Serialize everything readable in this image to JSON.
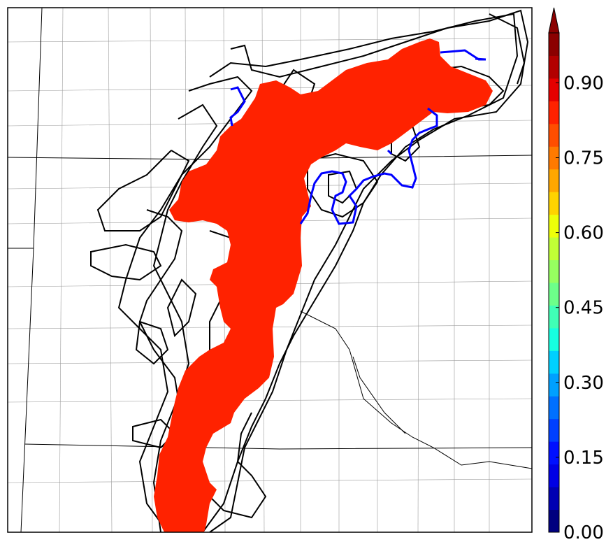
{
  "colorbar": {
    "tick_labels": [
      "0.00",
      "0.15",
      "0.30",
      "0.45",
      "0.60",
      "0.75",
      "0.90"
    ],
    "tick_values": [
      0.0,
      0.15,
      0.3,
      0.45,
      0.6,
      0.75,
      0.9
    ],
    "range": [
      0.0,
      1.0
    ],
    "extend": "max",
    "colors": [
      "#00007f",
      "#0000b2",
      "#0000e5",
      "#0010ff",
      "#0040ff",
      "#0070ff",
      "#00a0ff",
      "#00d0ff",
      "#16ffe0",
      "#40ffb6",
      "#6dff8a",
      "#97ff60",
      "#c1ff36",
      "#eeff09",
      "#ffd300",
      "#ffa700",
      "#ff7a00",
      "#ff4e00",
      "#ff2200",
      "#e50000",
      "#b20000",
      "#8b0000"
    ]
  },
  "legend": {
    "probability_fill_color": "#ff2200",
    "member_contour_color": "#000000",
    "observed_contour_color": "#0000ff"
  }
}
